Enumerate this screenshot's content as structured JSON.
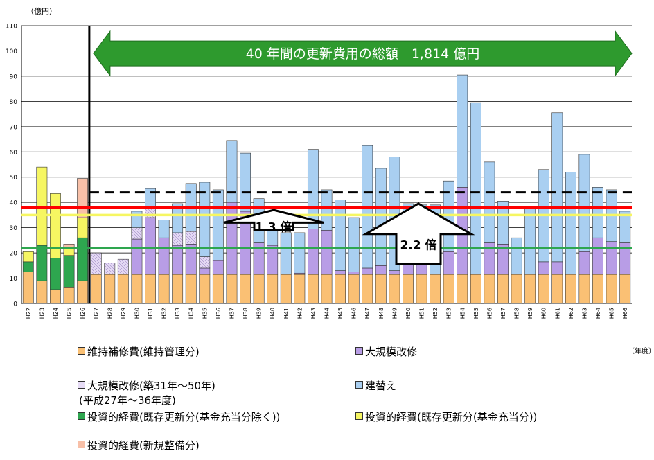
{
  "chart_data": {
    "type": "bar",
    "stacked": true,
    "ylabel": "（億円）",
    "xlabel": "（年度）",
    "ylim": [
      0,
      110
    ],
    "yticks": [
      0,
      10,
      20,
      30,
      40,
      50,
      60,
      70,
      80,
      90,
      100,
      110
    ],
    "grid": true,
    "categories": [
      "H22",
      "H23",
      "H24",
      "H25",
      "H26",
      "H27",
      "H28",
      "H29",
      "H30",
      "H31",
      "H32",
      "H33",
      "H34",
      "H35",
      "H36",
      "H37",
      "H38",
      "H39",
      "H40",
      "H41",
      "H42",
      "H43",
      "H44",
      "H45",
      "H46",
      "H47",
      "H48",
      "H49",
      "H50",
      "H51",
      "H52",
      "H53",
      "H54",
      "H55",
      "H56",
      "H57",
      "H58",
      "H59",
      "H60",
      "H61",
      "H62",
      "H63",
      "H64",
      "H65",
      "H66"
    ],
    "series": [
      {
        "name": "維持補修費(維持管理分)",
        "color": "#FAC074",
        "pattern": "solid",
        "values": [
          12.5,
          9,
          5.5,
          6.5,
          9,
          11.5,
          11.5,
          11.5,
          11.5,
          11.5,
          11.5,
          11.5,
          11.5,
          11.5,
          11.5,
          11.5,
          11.5,
          11.5,
          11.5,
          11.5,
          11.5,
          11.5,
          11.5,
          11.5,
          11.5,
          11.5,
          11.5,
          11.5,
          11.5,
          11.5,
          11.5,
          11.5,
          11.5,
          11.5,
          11.5,
          11.5,
          11.5,
          11.5,
          11.5,
          11.5,
          11.5,
          11.5,
          11.5,
          11.5,
          11.5
        ]
      },
      {
        "name": "大規模改修",
        "color": "#B89DE6",
        "pattern": "solid",
        "values": [
          0,
          0,
          0,
          0,
          0,
          0,
          0,
          0,
          14,
          22.5,
          14.5,
          11.5,
          12,
          2.5,
          5.5,
          28.5,
          25,
          12.5,
          11.5,
          0,
          0.5,
          18,
          17.5,
          1.5,
          1,
          2.5,
          3.5,
          1.5,
          6,
          10.5,
          0,
          9,
          34.5,
          0,
          12.5,
          12,
          0,
          0,
          5,
          5,
          0,
          9,
          14.5,
          13,
          12.5
        ]
      },
      {
        "name": "大規模改修(築31年～50年)(平成27年～36年度)",
        "color": "#E7DCF6",
        "pattern": "hatch",
        "values": [
          0,
          0,
          0,
          0,
          0,
          8.5,
          4.5,
          6,
          4.5,
          4.5,
          0,
          5,
          5,
          4.5,
          0,
          0,
          0,
          0,
          0,
          0,
          0,
          0,
          0,
          0,
          0,
          0,
          0,
          0,
          0,
          0,
          0,
          0,
          0,
          0,
          0,
          0,
          0,
          0,
          0,
          0,
          0,
          0,
          0,
          0,
          0
        ]
      },
      {
        "name": "建替え",
        "color": "#A9CFF1",
        "pattern": "solid",
        "values": [
          0,
          0,
          0,
          0,
          0,
          0,
          0,
          0,
          6.5,
          7,
          7,
          11.5,
          19,
          29.5,
          28,
          24.5,
          23,
          17.5,
          9.5,
          16.5,
          16,
          31.5,
          16,
          28,
          21.5,
          48.5,
          38.5,
          45,
          22,
          17,
          27.5,
          28,
          44.5,
          68,
          32,
          17,
          14.5,
          26.5,
          36.5,
          59,
          40.5,
          38.5,
          20,
          20.5,
          12.5
        ]
      },
      {
        "name": "投資的経費(既存更新分(基金充当分除く))",
        "color": "#2EA64F",
        "pattern": "solid",
        "values": [
          4,
          14,
          12.5,
          12.5,
          17,
          0,
          0,
          0,
          0,
          0,
          0,
          0,
          0,
          0,
          0,
          0,
          0,
          0,
          0,
          0,
          0,
          0,
          0,
          0,
          0,
          0,
          0,
          0,
          0,
          0,
          0,
          0,
          0,
          0,
          0,
          0,
          0,
          0,
          0,
          0,
          0,
          0,
          0,
          0,
          0
        ]
      },
      {
        "name": "投資的経費(既存更新分(基金充当分))",
        "color": "#F6F662",
        "pattern": "solid",
        "values": [
          4,
          31,
          25.5,
          3,
          8,
          0,
          0,
          0,
          0,
          0,
          0,
          0,
          0,
          0,
          0,
          0,
          0,
          0,
          0,
          0,
          0,
          0,
          0,
          0,
          0,
          0,
          0,
          0,
          0,
          0,
          0,
          0,
          0,
          0,
          0,
          0,
          0,
          0,
          0,
          0,
          0,
          0,
          0,
          0,
          0
        ]
      },
      {
        "name": "投資的経費(新規整備分)",
        "color": "#F8C0A8",
        "pattern": "solid",
        "values": [
          0,
          0,
          0,
          1.5,
          15.5,
          0,
          0,
          0,
          0,
          0,
          0,
          0,
          0,
          0,
          0,
          0,
          0,
          0,
          0,
          0,
          0,
          0,
          0,
          0,
          0,
          0,
          0,
          0,
          0,
          0,
          0,
          0,
          0,
          0,
          0,
          0,
          0,
          0,
          0,
          0,
          0,
          0,
          0,
          0,
          0
        ]
      }
    ],
    "hlines": [
      {
        "value": 44,
        "color": "#000000",
        "style": "dashed"
      },
      {
        "value": 38,
        "color": "#FF0000",
        "style": "solid"
      },
      {
        "value": 35,
        "color": "#F6F662",
        "style": "solid"
      },
      {
        "value": 22,
        "color": "#2EA64F",
        "style": "solid"
      }
    ],
    "divider_after": "H26",
    "annotations": {
      "total_banner": "40 年間の更新費用の総額　1,814 億円",
      "ratio_1": "1.3 倍",
      "ratio_2": "2.2 倍"
    }
  },
  "legend": {
    "items": [
      {
        "label": "維持補修費(維持管理分)",
        "color": "#FAC074"
      },
      {
        "label": "大規模改修",
        "color": "#B89DE6"
      },
      {
        "label": "大規模改修(築31年～50年)",
        "sub": "(平成27年～36年度)",
        "color": "#E7DCF6"
      },
      {
        "label": "建替え",
        "color": "#A9CFF1"
      },
      {
        "label": "投資的経費(既存更新分(基金充当分除く))",
        "color": "#2EA64F"
      },
      {
        "label": "投資的経費(既存更新分(基金充当分))",
        "color": "#F6F662"
      },
      {
        "label": "投資的経費(新規整備分)",
        "color": "#F8C0A8"
      }
    ]
  }
}
